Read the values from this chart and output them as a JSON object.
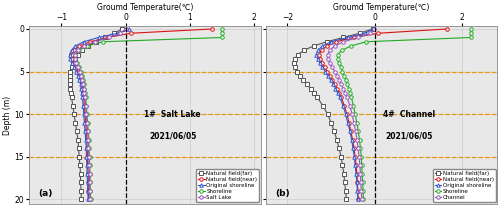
{
  "title": "Groumd Temperature(℃)",
  "figsize": [
    5.0,
    2.08
  ],
  "dpi": 100,
  "bg_color": "#e8e8e8",
  "grid_color": "#cccccc",
  "orange_hline_color": "#e8960a",
  "panel_a": {
    "label": "(a)",
    "site": "1#  Salt Lake",
    "date": "2021/06/05",
    "xlim": [
      -1.5,
      2.1
    ],
    "xticks": [
      -1,
      0,
      1,
      2
    ],
    "ylim": [
      20.5,
      -0.3
    ],
    "yticks": [
      0,
      5,
      10,
      15,
      20
    ],
    "hlines": [
      5,
      10,
      15
    ],
    "legend": [
      "Natural field(far)",
      "Natural field(near)",
      "Original shoreline",
      "Shoreline",
      "Salt Lake"
    ],
    "series": {
      "natural_far": {
        "color": "#555555",
        "marker": "s",
        "ms": 2.5,
        "lw": 0.8,
        "depths": [
          0,
          0.5,
          1,
          1.5,
          2,
          2.5,
          3,
          3.5,
          4,
          4.5,
          5,
          5.5,
          6,
          6.5,
          7,
          7.5,
          8,
          9,
          10,
          11,
          12,
          13,
          14,
          15,
          16,
          17,
          18,
          19,
          20
        ],
        "temps": [
          -0.05,
          -0.18,
          -0.32,
          -0.46,
          -0.58,
          -0.67,
          -0.74,
          -0.78,
          -0.82,
          -0.84,
          -0.86,
          -0.87,
          -0.87,
          -0.87,
          -0.86,
          -0.85,
          -0.84,
          -0.82,
          -0.8,
          -0.78,
          -0.76,
          -0.74,
          -0.73,
          -0.72,
          -0.71,
          -0.7,
          -0.7,
          -0.69,
          -0.69
        ]
      },
      "natural_near": {
        "color": "#dd1111",
        "marker": "o",
        "ms": 2.5,
        "lw": 0.8,
        "depths": [
          0,
          0.5,
          1,
          1.5,
          2,
          2.5,
          3,
          3.5,
          4,
          4.5,
          5,
          5.5,
          6,
          6.5,
          7,
          7.5,
          8,
          9,
          10,
          11,
          12,
          13,
          14,
          15,
          16,
          17,
          18,
          19,
          20
        ],
        "temps": [
          1.35,
          0.08,
          -0.28,
          -0.55,
          -0.72,
          -0.8,
          -0.84,
          -0.83,
          -0.8,
          -0.77,
          -0.74,
          -0.71,
          -0.69,
          -0.68,
          -0.67,
          -0.66,
          -0.65,
          -0.64,
          -0.63,
          -0.62,
          -0.61,
          -0.6,
          -0.6,
          -0.59,
          -0.59,
          -0.58,
          -0.58,
          -0.58,
          -0.57
        ]
      },
      "original_shoreline": {
        "color": "#3355cc",
        "marker": "^",
        "ms": 2.5,
        "lw": 0.8,
        "depths": [
          0,
          0.5,
          1,
          1.5,
          2,
          2.5,
          3,
          3.5,
          4,
          4.5,
          5,
          5.5,
          6,
          6.5,
          7,
          7.5,
          8,
          9,
          10,
          11,
          12,
          13,
          14,
          15,
          16,
          17,
          18,
          19,
          20
        ],
        "temps": [
          0.05,
          -0.12,
          -0.42,
          -0.65,
          -0.78,
          -0.84,
          -0.87,
          -0.86,
          -0.83,
          -0.8,
          -0.77,
          -0.74,
          -0.72,
          -0.7,
          -0.69,
          -0.68,
          -0.67,
          -0.66,
          -0.65,
          -0.64,
          -0.63,
          -0.62,
          -0.61,
          -0.61,
          -0.6,
          -0.6,
          -0.59,
          -0.59,
          -0.58
        ]
      },
      "shoreline": {
        "color": "#22aa22",
        "marker": "o",
        "ms": 2.5,
        "lw": 0.8,
        "depths": [
          0,
          0.5,
          1,
          1.5,
          2,
          2.5,
          3,
          3.5,
          4,
          4.5,
          5,
          5.5,
          6,
          6.5,
          7,
          7.5,
          8,
          9,
          10,
          11,
          12,
          13,
          14,
          15,
          16,
          17,
          18,
          19,
          20
        ],
        "temps": [
          1.5,
          1.5,
          1.5,
          -0.35,
          -0.6,
          -0.72,
          -0.78,
          -0.78,
          -0.76,
          -0.73,
          -0.7,
          -0.68,
          -0.66,
          -0.65,
          -0.64,
          -0.63,
          -0.62,
          -0.61,
          -0.6,
          -0.59,
          -0.58,
          -0.57,
          -0.57,
          -0.56,
          -0.56,
          -0.55,
          -0.55,
          -0.55,
          -0.54
        ]
      },
      "salt_lake": {
        "color": "#9955bb",
        "marker": "o",
        "ms": 2.5,
        "lw": 0.8,
        "depths": [
          0,
          0.5,
          1,
          1.5,
          2,
          2.5,
          3,
          3.5,
          4,
          4.5,
          5,
          5.5,
          6,
          6.5,
          7,
          7.5,
          8,
          9,
          10,
          11,
          12,
          13,
          14,
          15,
          16,
          17,
          18,
          19,
          20
        ],
        "temps": [
          0.0,
          -0.08,
          -0.25,
          -0.48,
          -0.65,
          -0.74,
          -0.79,
          -0.79,
          -0.77,
          -0.74,
          -0.71,
          -0.69,
          -0.67,
          -0.66,
          -0.65,
          -0.64,
          -0.63,
          -0.62,
          -0.61,
          -0.6,
          -0.59,
          -0.58,
          -0.58,
          -0.57,
          -0.57,
          -0.56,
          -0.56,
          -0.56,
          -0.55
        ]
      }
    }
  },
  "panel_b": {
    "label": "(b)",
    "site": "4#  Channel",
    "date": "2021/06/05",
    "xlim": [
      -2.5,
      2.8
    ],
    "xticks": [
      -2,
      0,
      2
    ],
    "ylim": [
      20.5,
      -0.3
    ],
    "yticks": [
      0,
      5,
      10,
      15,
      20
    ],
    "hlines": [
      5,
      10,
      15
    ],
    "legend": [
      "Natural field(far)",
      "Natural field(near)",
      "Original shoreline",
      "Shoreline",
      "Channel"
    ],
    "series": {
      "natural_far": {
        "color": "#555555",
        "marker": "s",
        "ms": 2.5,
        "lw": 0.8,
        "depths": [
          0,
          0.5,
          1,
          1.5,
          2,
          2.5,
          3,
          3.5,
          4,
          4.5,
          5,
          5.5,
          6,
          6.5,
          7,
          7.5,
          8,
          9,
          10,
          11,
          12,
          13,
          14,
          15,
          16,
          17,
          18,
          19,
          20
        ],
        "temps": [
          -0.05,
          -0.35,
          -0.72,
          -1.1,
          -1.4,
          -1.62,
          -1.76,
          -1.83,
          -1.85,
          -1.83,
          -1.78,
          -1.72,
          -1.64,
          -1.55,
          -1.47,
          -1.39,
          -1.32,
          -1.19,
          -1.08,
          -1.0,
          -0.93,
          -0.87,
          -0.82,
          -0.77,
          -0.74,
          -0.71,
          -0.69,
          -0.67,
          -0.65
        ]
      },
      "natural_near": {
        "color": "#dd1111",
        "marker": "o",
        "ms": 2.5,
        "lw": 0.8,
        "depths": [
          0,
          0.5,
          1,
          1.5,
          2,
          2.5,
          3,
          3.5,
          4,
          4.5,
          5,
          5.5,
          6,
          6.5,
          7,
          7.5,
          8,
          9,
          10,
          11,
          12,
          13,
          14,
          15,
          16,
          17,
          18,
          19,
          20
        ],
        "temps": [
          1.65,
          0.08,
          -0.48,
          -0.88,
          -1.1,
          -1.22,
          -1.27,
          -1.25,
          -1.2,
          -1.15,
          -1.09,
          -1.03,
          -0.97,
          -0.91,
          -0.86,
          -0.81,
          -0.77,
          -0.7,
          -0.64,
          -0.59,
          -0.55,
          -0.51,
          -0.48,
          -0.45,
          -0.43,
          -0.41,
          -0.4,
          -0.39,
          -0.38
        ]
      },
      "original_shoreline": {
        "color": "#3355cc",
        "marker": "^",
        "ms": 2.5,
        "lw": 0.8,
        "depths": [
          0,
          0.5,
          1,
          1.5,
          2,
          2.5,
          3,
          3.5,
          4,
          4.5,
          5,
          5.5,
          6,
          6.5,
          7,
          7.5,
          8,
          9,
          10,
          11,
          12,
          13,
          14,
          15,
          16,
          17,
          18,
          19,
          20
        ],
        "temps": [
          -0.05,
          -0.22,
          -0.62,
          -1.0,
          -1.2,
          -1.3,
          -1.34,
          -1.31,
          -1.26,
          -1.2,
          -1.13,
          -1.07,
          -1.01,
          -0.95,
          -0.9,
          -0.85,
          -0.8,
          -0.73,
          -0.67,
          -0.62,
          -0.57,
          -0.53,
          -0.5,
          -0.47,
          -0.45,
          -0.43,
          -0.41,
          -0.4,
          -0.39
        ]
      },
      "shoreline": {
        "color": "#22aa22",
        "marker": "o",
        "ms": 2.5,
        "lw": 0.8,
        "depths": [
          0,
          0.5,
          1,
          1.5,
          2,
          2.5,
          3,
          3.5,
          4,
          4.5,
          5,
          5.5,
          6,
          6.5,
          7,
          7.5,
          8,
          9,
          10,
          11,
          12,
          13,
          14,
          15,
          16,
          17,
          18,
          19,
          20
        ],
        "temps": [
          2.2,
          2.2,
          2.2,
          -0.2,
          -0.55,
          -0.75,
          -0.85,
          -0.85,
          -0.82,
          -0.78,
          -0.74,
          -0.7,
          -0.66,
          -0.63,
          -0.6,
          -0.57,
          -0.54,
          -0.49,
          -0.45,
          -0.41,
          -0.38,
          -0.35,
          -0.33,
          -0.31,
          -0.3,
          -0.29,
          -0.28,
          -0.27,
          -0.26
        ]
      },
      "channel": {
        "color": "#9955bb",
        "marker": "o",
        "ms": 2.5,
        "lw": 0.8,
        "depths": [
          0,
          0.5,
          1,
          1.5,
          2,
          2.5,
          3,
          3.5,
          4,
          4.5,
          5,
          5.5,
          6,
          6.5,
          7,
          7.5,
          8,
          9,
          10,
          11,
          12,
          13,
          14,
          15,
          16,
          17,
          18,
          19,
          20
        ],
        "temps": [
          -0.02,
          -0.1,
          -0.38,
          -0.72,
          -0.92,
          -1.03,
          -1.08,
          -1.07,
          -1.03,
          -0.98,
          -0.92,
          -0.87,
          -0.82,
          -0.77,
          -0.72,
          -0.68,
          -0.64,
          -0.57,
          -0.52,
          -0.48,
          -0.44,
          -0.41,
          -0.38,
          -0.36,
          -0.34,
          -0.33,
          -0.32,
          -0.31,
          -0.3
        ]
      }
    }
  }
}
